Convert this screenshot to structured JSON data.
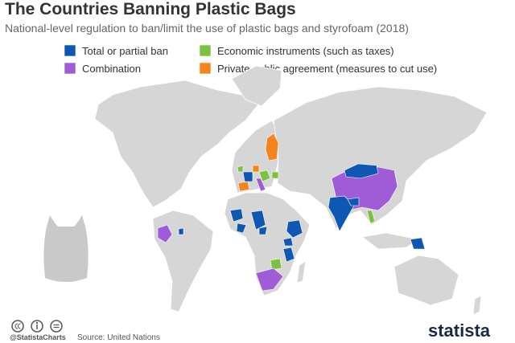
{
  "header": {
    "title": "The Countries Banning Plastic Bags",
    "subtitle": "National-level regulation to ban/limit the use of plastic bags and styrofoam (2018)"
  },
  "legend": {
    "items": [
      {
        "label": "Total or partial ban",
        "color": "#0e57b3"
      },
      {
        "label": "Combination",
        "color": "#a05cd6"
      },
      {
        "label": "Economic instruments (such as taxes)",
        "color": "#7cc242"
      },
      {
        "label": "Private public agreement (measures to cut use)",
        "color": "#f5841f"
      }
    ]
  },
  "footer": {
    "credit": "@StatistaCharts",
    "source": "Source: United Nations",
    "brand": "statista"
  }
}
